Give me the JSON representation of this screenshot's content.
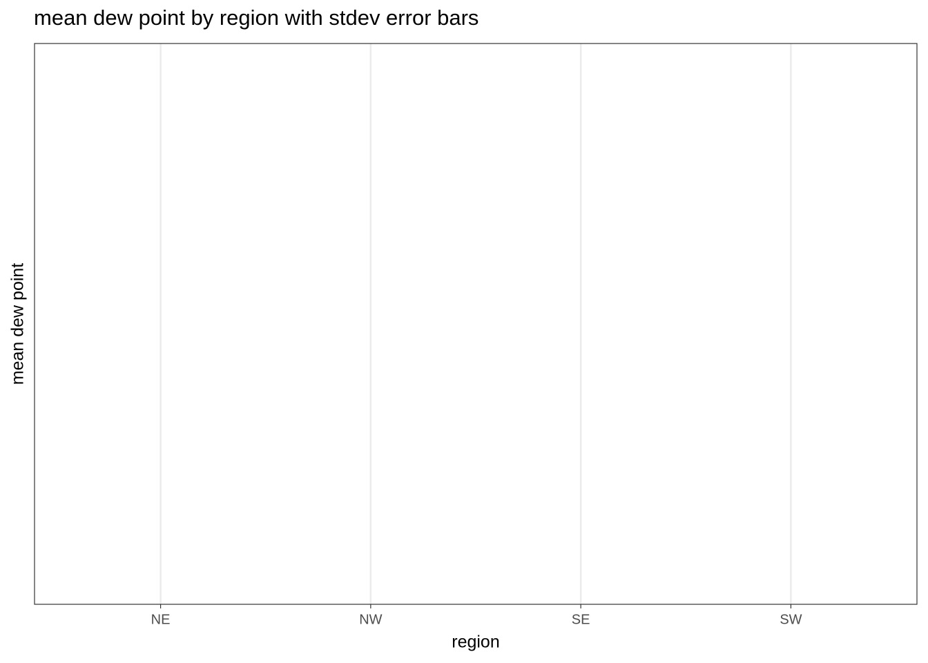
{
  "chart_data": {
    "type": "errorbar",
    "title": "mean dew point by region with stdev error bars",
    "x_label": "region",
    "y_label": "mean dew point",
    "categories": [
      "NE",
      "NW",
      "SE",
      "SW"
    ],
    "grid": true
  }
}
